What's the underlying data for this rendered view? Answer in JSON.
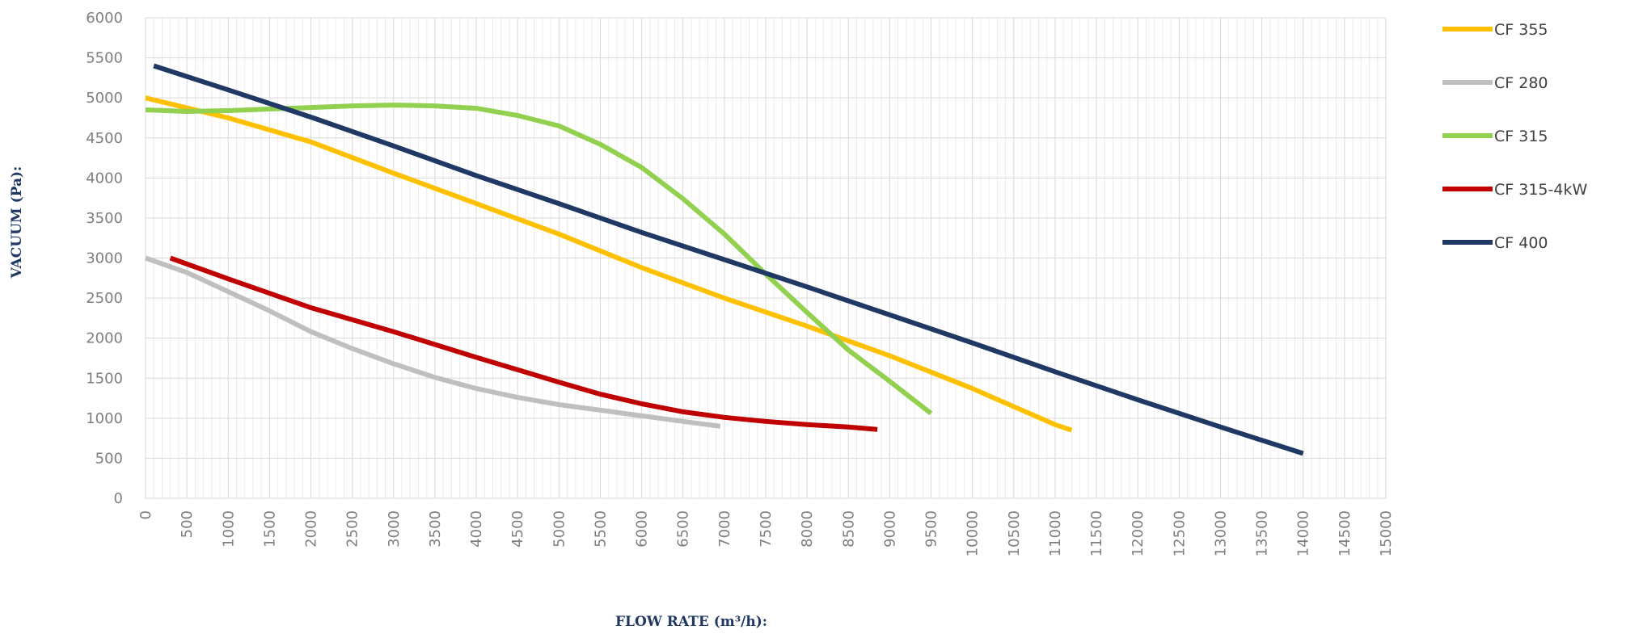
{
  "chart_data": {
    "type": "line",
    "title": "",
    "xlabel": "FLOW RATE (m³/h):",
    "ylabel": "VACUUM (Pa):",
    "xlim": [
      0,
      15000
    ],
    "ylim": [
      0,
      6000
    ],
    "x_ticks": [
      0,
      500,
      1000,
      1500,
      2000,
      2500,
      3000,
      3500,
      4000,
      4500,
      5000,
      5500,
      6000,
      6500,
      7000,
      7500,
      8000,
      8500,
      9000,
      9500,
      10000,
      10500,
      11000,
      11500,
      12000,
      12500,
      13000,
      13500,
      14000,
      14500,
      15000
    ],
    "y_ticks": [
      0,
      500,
      1000,
      1500,
      2000,
      2500,
      3000,
      3500,
      4000,
      4500,
      5000,
      5500,
      6000
    ],
    "grid": true,
    "legend_position": "right",
    "series": [
      {
        "name": "CF 355",
        "color": "#ffc000",
        "points": [
          [
            0,
            5000
          ],
          [
            1000,
            4750
          ],
          [
            2000,
            4450
          ],
          [
            3000,
            4060
          ],
          [
            4000,
            3680
          ],
          [
            5000,
            3300
          ],
          [
            6000,
            2880
          ],
          [
            7000,
            2500
          ],
          [
            8000,
            2150
          ],
          [
            9000,
            1780
          ],
          [
            10000,
            1370
          ],
          [
            11000,
            920
          ],
          [
            11200,
            850
          ]
        ]
      },
      {
        "name": "CF 280",
        "color": "#bfbfbf",
        "points": [
          [
            0,
            3000
          ],
          [
            500,
            2820
          ],
          [
            1000,
            2580
          ],
          [
            1500,
            2340
          ],
          [
            2000,
            2080
          ],
          [
            2500,
            1870
          ],
          [
            3000,
            1680
          ],
          [
            3500,
            1510
          ],
          [
            4000,
            1370
          ],
          [
            4500,
            1260
          ],
          [
            5000,
            1170
          ],
          [
            5500,
            1100
          ],
          [
            6000,
            1030
          ],
          [
            6500,
            960
          ],
          [
            6950,
            900
          ]
        ]
      },
      {
        "name": "CF 315",
        "color": "#92d050",
        "points": [
          [
            0,
            4850
          ],
          [
            500,
            4830
          ],
          [
            1000,
            4840
          ],
          [
            1500,
            4860
          ],
          [
            2000,
            4880
          ],
          [
            2500,
            4900
          ],
          [
            3000,
            4910
          ],
          [
            3500,
            4900
          ],
          [
            4000,
            4870
          ],
          [
            4500,
            4780
          ],
          [
            5000,
            4650
          ],
          [
            5500,
            4420
          ],
          [
            6000,
            4130
          ],
          [
            6500,
            3740
          ],
          [
            7000,
            3300
          ],
          [
            7500,
            2800
          ],
          [
            8000,
            2320
          ],
          [
            8500,
            1850
          ],
          [
            9000,
            1460
          ],
          [
            9500,
            1060
          ]
        ]
      },
      {
        "name": "CF 315-4kW",
        "color": "#c00000",
        "points": [
          [
            300,
            3000
          ],
          [
            1000,
            2740
          ],
          [
            2000,
            2380
          ],
          [
            3000,
            2080
          ],
          [
            4000,
            1760
          ],
          [
            5000,
            1450
          ],
          [
            5500,
            1300
          ],
          [
            6000,
            1180
          ],
          [
            6500,
            1080
          ],
          [
            7000,
            1010
          ],
          [
            7500,
            960
          ],
          [
            8000,
            920
          ],
          [
            8500,
            890
          ],
          [
            8850,
            860
          ]
        ]
      },
      {
        "name": "CF 400",
        "color": "#203864",
        "points": [
          [
            100,
            5400
          ],
          [
            1000,
            5100
          ],
          [
            2000,
            4760
          ],
          [
            3000,
            4400
          ],
          [
            4000,
            4030
          ],
          [
            5000,
            3680
          ],
          [
            6000,
            3320
          ],
          [
            7000,
            2980
          ],
          [
            8000,
            2640
          ],
          [
            9000,
            2290
          ],
          [
            10000,
            1940
          ],
          [
            11000,
            1580
          ],
          [
            12000,
            1230
          ],
          [
            13000,
            890
          ],
          [
            14000,
            560
          ]
        ]
      }
    ]
  }
}
